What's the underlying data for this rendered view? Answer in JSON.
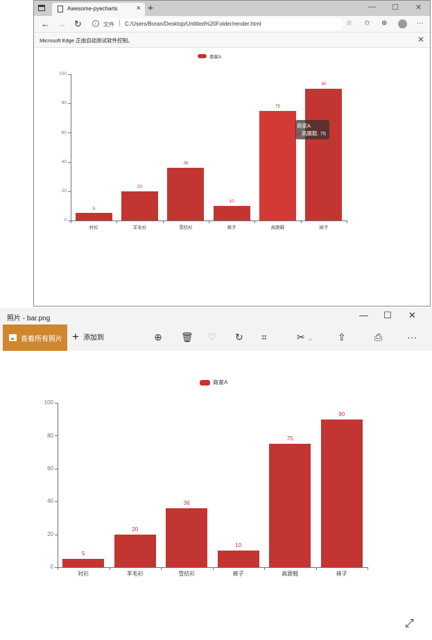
{
  "browser": {
    "tab_title": "Awesome-pyecharts",
    "tab_close": "×",
    "new_tab": "+",
    "window_controls": {
      "minimize": "—",
      "maximize": "☐",
      "close": "✕"
    },
    "nav": {
      "back": "←",
      "forward": "→",
      "refresh": "↻"
    },
    "address": {
      "info_icon": "i",
      "scheme_label": "文件",
      "separator": "|",
      "url": "C:/Users/Boran/Desktop/Untitled%20Folder/render.html"
    },
    "toolbar_icons": {
      "add_favorite": "☆",
      "favorites": "✩",
      "collections": "⊕",
      "more": "···"
    },
    "infobar": {
      "message": "Microsoft Edge 正由自动测试软件控制。",
      "close": "✕"
    },
    "tooltip": {
      "series": "商家A",
      "item": "高跟鞋",
      "value": "75",
      "text": "高跟鞋: 75"
    }
  },
  "photos": {
    "title": "照片 - bar.png",
    "window_controls": {
      "minimize": "—",
      "maximize": "☐",
      "close": "✕"
    },
    "toolbar": {
      "see_all": "查看所有照片",
      "add_to": "添加到",
      "add_icon": "+",
      "zoom_icon": "⊕",
      "delete_icon": "🗑",
      "favorite_icon": "♡",
      "rotate_icon": "↻",
      "crop_icon": "⌗",
      "edit_icon": "✂",
      "edit_chevron": "⌄",
      "share_icon": "⇪",
      "print_icon": "⎙",
      "more_icon": "···"
    },
    "expand_icon": "⤢"
  },
  "chart_data": [
    {
      "type": "bar",
      "title": "",
      "legend": [
        "商家A"
      ],
      "legend_position": "top-center",
      "categories": [
        "衬衫",
        "羊毛衫",
        "雪纺衫",
        "裤子",
        "高跟鞋",
        "袜子"
      ],
      "series": [
        {
          "name": "商家A",
          "values": [
            5,
            20,
            36,
            10,
            75,
            90
          ],
          "color": "#c23531"
        }
      ],
      "xlabel": "",
      "ylabel": "",
      "ylim": [
        0,
        100
      ],
      "yticks": [
        0,
        20,
        40,
        60,
        80,
        100
      ],
      "grid": false,
      "tooltip": {
        "series": "商家A",
        "category": "高跟鞋",
        "value": 75
      },
      "context": "browser render.html"
    },
    {
      "type": "bar",
      "title": "",
      "legend": [
        "商家A"
      ],
      "legend_position": "top-center",
      "categories": [
        "衬衫",
        "羊毛衫",
        "雪纺衫",
        "裤子",
        "高跟鞋",
        "袜子"
      ],
      "series": [
        {
          "name": "商家A",
          "values": [
            5,
            20,
            36,
            10,
            75,
            90
          ],
          "color": "#c23531"
        }
      ],
      "xlabel": "",
      "ylabel": "",
      "ylim": [
        0,
        100
      ],
      "yticks": [
        0,
        20,
        40,
        60,
        80,
        100
      ],
      "grid": false,
      "context": "photos bar.png"
    }
  ],
  "colors": {
    "bar": "#c23531",
    "photos_accent": "#d0862c",
    "axis": "#6e7079"
  }
}
